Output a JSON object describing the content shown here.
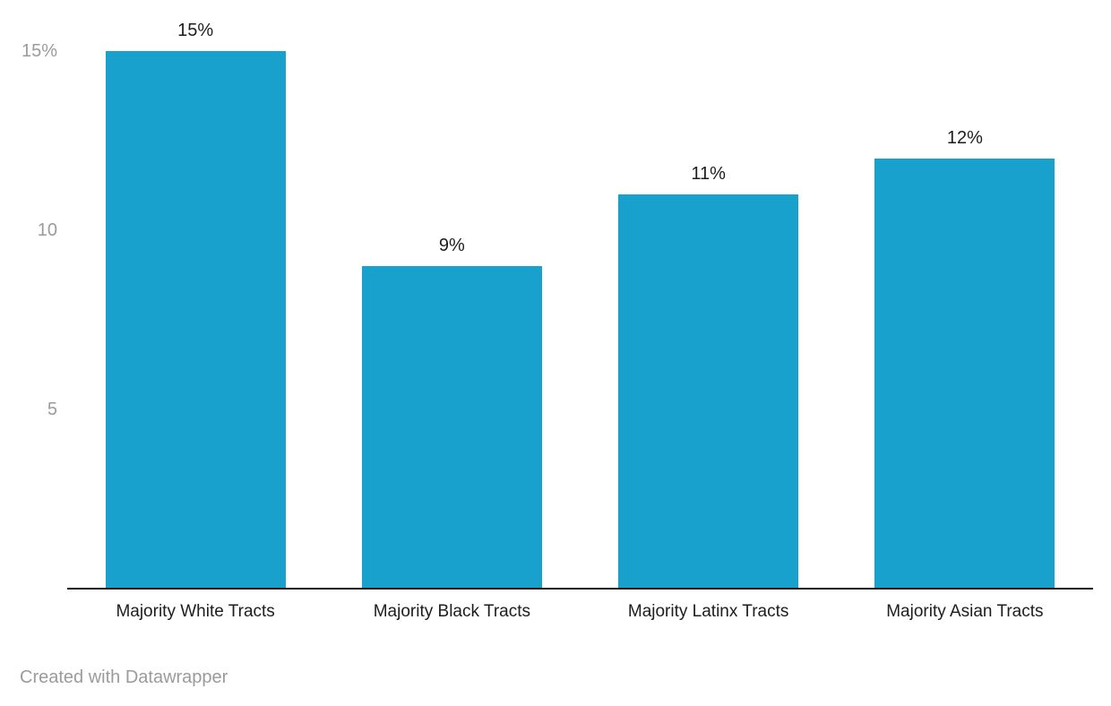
{
  "chart_data": {
    "type": "bar",
    "title": "",
    "xlabel": "",
    "ylabel": "",
    "categories": [
      "Majority White Tracts",
      "Majority Black Tracts",
      "Majority Latinx Tracts",
      "Majority Asian Tracts"
    ],
    "values": [
      15,
      9,
      11,
      12
    ],
    "value_labels": [
      "15%",
      "9%",
      "11%",
      "12%"
    ],
    "y_ticks": [
      {
        "value": 15,
        "label": "15%"
      },
      {
        "value": 10,
        "label": "10"
      },
      {
        "value": 5,
        "label": "5"
      }
    ],
    "ylim": [
      0,
      15
    ],
    "grid": "off",
    "legend": "none",
    "bar_color": "#18a1cd"
  },
  "footer": {
    "credit_label": "Created with Datawrapper"
  },
  "colors": {
    "bar": "#18a1cd",
    "axis_line": "#18181a",
    "tick_label": "#9b9b9b",
    "value_label": "#1d1d1d",
    "category_label": "#1d1d1d",
    "credit": "#9b9b9b",
    "background": "#ffffff"
  }
}
